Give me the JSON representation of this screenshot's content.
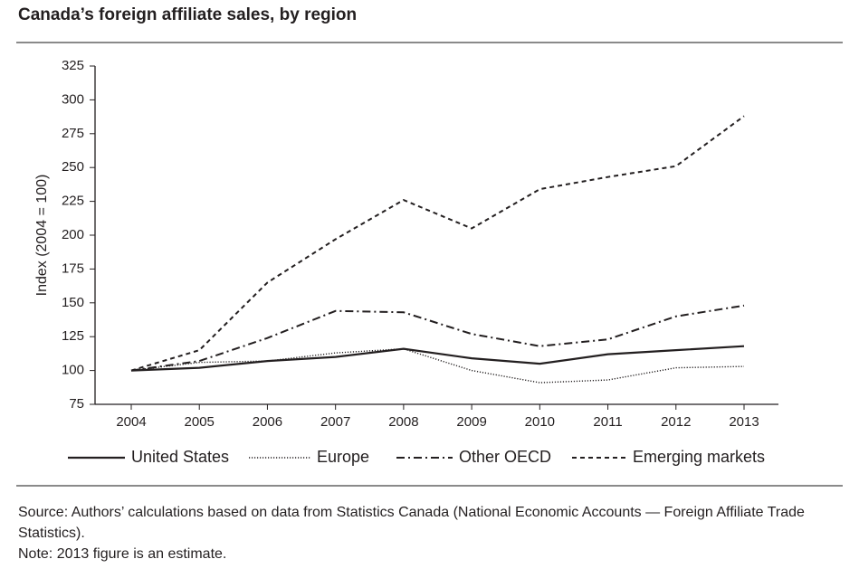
{
  "chart_data": {
    "type": "line",
    "title": "Canada’s foreign affiliate sales, by region",
    "ylabel": "Index (2004 = 100)",
    "categories": [
      "2004",
      "2005",
      "2006",
      "2007",
      "2008",
      "2009",
      "2010",
      "2011",
      "2012",
      "2013"
    ],
    "series": [
      {
        "name": "United States",
        "color": "#231f20",
        "dash": "solid",
        "values": [
          100,
          102,
          107,
          110,
          116,
          109,
          105,
          112,
          115,
          118
        ]
      },
      {
        "name": "Europe",
        "color": "#231f20",
        "dash": "dotted",
        "values": [
          100,
          106,
          107,
          113,
          116,
          100,
          91,
          93,
          102,
          103
        ]
      },
      {
        "name": "Other OECD",
        "color": "#231f20",
        "dash": "dashdot",
        "values": [
          100,
          107,
          124,
          144,
          143,
          127,
          118,
          123,
          140,
          148
        ]
      },
      {
        "name": "Emerging markets",
        "color": "#231f20",
        "dash": "dashed",
        "values": [
          100,
          115,
          165,
          197,
          226,
          205,
          234,
          243,
          251,
          288
        ]
      }
    ],
    "ylim": [
      75,
      325
    ],
    "yticks": [
      75,
      100,
      125,
      150,
      175,
      200,
      225,
      250,
      275,
      300,
      325
    ],
    "grid": false,
    "legend": "bottom",
    "source": "Source: Authors’ calculations based on data from Statistics Canada (National Economic Accounts — Foreign Affiliate Trade Statistics).",
    "note": "Note: 2013 figure is an estimate."
  }
}
